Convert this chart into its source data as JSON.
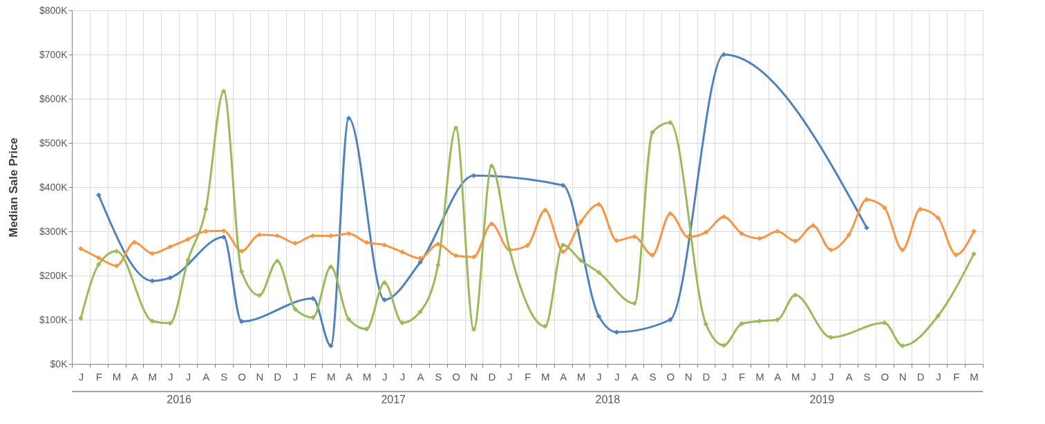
{
  "chart_data": {
    "type": "line",
    "ylabel": "Median Sale Price",
    "categories": [
      "J",
      "F",
      "M",
      "A",
      "M",
      "J",
      "J",
      "A",
      "S",
      "O",
      "N",
      "D",
      "J",
      "F",
      "M",
      "A",
      "M",
      "J",
      "J",
      "A",
      "S",
      "O",
      "N",
      "D",
      "J",
      "F",
      "M",
      "A",
      "M",
      "J",
      "J",
      "A",
      "S",
      "O",
      "N",
      "D",
      "J",
      "F",
      "M",
      "A",
      "M",
      "J",
      "J",
      "A",
      "S",
      "O",
      "N",
      "D",
      "J",
      "F",
      "M"
    ],
    "ylim": [
      0,
      800000
    ],
    "yticks": [
      {
        "value": 0,
        "label": "$0K"
      },
      {
        "value": 100000,
        "label": "$100K"
      },
      {
        "value": 200000,
        "label": "$200K"
      },
      {
        "value": 300000,
        "label": "$300K"
      },
      {
        "value": 400000,
        "label": "$400K"
      },
      {
        "value": 500000,
        "label": "$500K"
      },
      {
        "value": 600000,
        "label": "$600K"
      },
      {
        "value": 700000,
        "label": "$700K"
      },
      {
        "value": 800000,
        "label": "$800K"
      }
    ],
    "annotations": [
      "2016",
      "2017",
      "2018",
      "2019"
    ],
    "grid": true,
    "marker": "diamond",
    "line_style": "solid",
    "series": [
      {
        "color": "#4f81bd",
        "values": [
          null,
          382000,
          null,
          null,
          188000,
          195000,
          null,
          null,
          287000,
          96000,
          null,
          null,
          null,
          148000,
          41000,
          556000,
          null,
          145000,
          null,
          230000,
          null,
          null,
          426000,
          null,
          null,
          null,
          null,
          404000,
          null,
          108000,
          72000,
          null,
          null,
          100000,
          null,
          null,
          700000,
          null,
          null,
          null,
          null,
          null,
          null,
          null,
          308000,
          null,
          null,
          null,
          null,
          null,
          null
        ]
      },
      {
        "color": "#f79646",
        "values": [
          261000,
          240000,
          222000,
          275000,
          250000,
          265000,
          282000,
          300000,
          301000,
          255000,
          292000,
          290000,
          273000,
          290000,
          290000,
          295000,
          275000,
          269000,
          253000,
          239000,
          271000,
          245000,
          242000,
          317000,
          258000,
          268000,
          348000,
          254000,
          322000,
          361000,
          279000,
          288000,
          246000,
          340000,
          287000,
          298000,
          333000,
          295000,
          284000,
          300000,
          278000,
          313000,
          258000,
          292000,
          372000,
          353000,
          258000,
          350000,
          330000,
          247000,
          300000
        ]
      },
      {
        "color": "#9bbb59",
        "values": [
          103000,
          225000,
          255000,
          null,
          97000,
          92000,
          235000,
          350000,
          617000,
          209000,
          155000,
          233000,
          124000,
          105000,
          220000,
          101000,
          79000,
          184000,
          93000,
          118000,
          224000,
          534000,
          78000,
          448000,
          259000,
          null,
          85000,
          269000,
          234000,
          207000,
          null,
          137000,
          524000,
          546000,
          null,
          90000,
          42000,
          91000,
          97000,
          100000,
          156000,
          null,
          60000,
          null,
          null,
          93000,
          41000,
          null,
          109000,
          null,
          249000
        ]
      }
    ]
  }
}
